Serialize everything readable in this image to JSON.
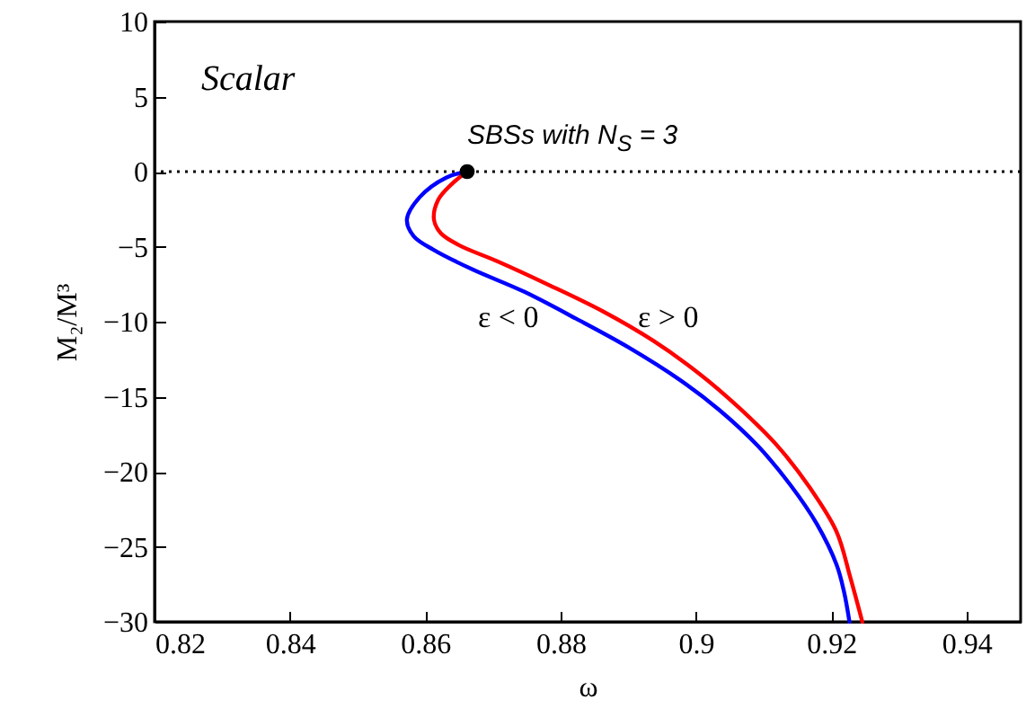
{
  "chart_data": {
    "type": "line",
    "xlabel": "ω",
    "ylabel": "M₂/M³",
    "xlim": [
      0.82,
      0.948
    ],
    "xticks": [
      0.82,
      0.84,
      0.86,
      0.88,
      0.9,
      0.92,
      0.94
    ],
    "ylim": [
      -30,
      10
    ],
    "yticks": [
      -30,
      -25,
      -20,
      -15,
      -10,
      -5,
      0,
      5,
      10
    ],
    "series": [
      {
        "color": "#0000ff",
        "x": [
          0.8662,
          0.8631,
          0.8592,
          0.8573,
          0.8583,
          0.8612,
          0.8669,
          0.8746,
          0.8823,
          0.89,
          0.8977,
          0.9035,
          0.9092,
          0.914,
          0.9179,
          0.9208,
          0.9219,
          0.9227
        ],
        "values": [
          0,
          -0.4,
          -1.7,
          -3.2,
          -4.3,
          -5.2,
          -6.5,
          -8.0,
          -9.8,
          -11.7,
          -13.9,
          -15.9,
          -18.3,
          -20.9,
          -23.5,
          -26.2,
          -28,
          -30
        ]
      },
      {
        "color": "#ff0000",
        "x": [
          0.8662,
          0.864,
          0.8619,
          0.8613,
          0.8623,
          0.865,
          0.8708,
          0.8785,
          0.8862,
          0.8938,
          0.9006,
          0.9063,
          0.9121,
          0.9169,
          0.9208,
          0.9228,
          0.9246
        ],
        "values": [
          0,
          -0.8,
          -1.9,
          -3.2,
          -4.1,
          -4.9,
          -6.0,
          -7.6,
          -9.3,
          -11.3,
          -13.5,
          -15.7,
          -18.3,
          -21.1,
          -24.0,
          -27,
          -30
        ]
      },
      {
        "type": "scatter",
        "marker": "circle",
        "color": "#000000",
        "x": [
          0.8662
        ],
        "values": [
          0
        ]
      }
    ],
    "ref_lines": [
      {
        "axis": "y",
        "value": 0,
        "line_style": "dotted",
        "color": "#000000"
      }
    ],
    "annotations": [
      "Scalar",
      {
        "text": "SBSs with N$_{S}$ = 3",
        "x": 0.8662,
        "y": 0
      },
      "ε < 0",
      "ε > 0"
    ]
  }
}
